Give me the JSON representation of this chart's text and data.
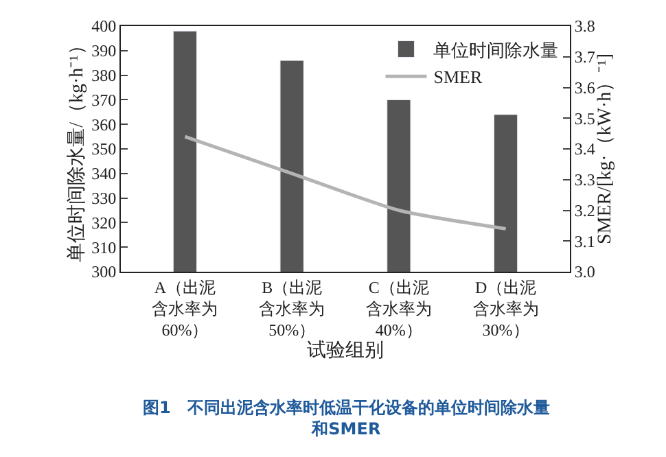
{
  "chart_data": {
    "type": "bar",
    "title": "图1　不同出泥含水率时低温干化设备的单位时间除水量和SMER",
    "xlabel": "试验组别",
    "ylabel": "单位时间除水量/（kg·h⁻¹）",
    "y2label": "SMER/[kg·（kW·h）⁻¹]",
    "categories": [
      "A（出泥含水率为60%）",
      "B（出泥含水率为50%）",
      "C（出泥含水率为40%）",
      "D（出泥含水率为30%）"
    ],
    "series": [
      {
        "name": "单位时间除水量",
        "color": "#555555",
        "values": [
          398,
          386,
          370,
          364
        ]
      },
      {
        "name": "SMER",
        "color": "#b4b4b4",
        "type": "line",
        "axis": "y2",
        "values": [
          3.44,
          3.32,
          3.2,
          3.14
        ]
      }
    ],
    "ylim": [
      300,
      400
    ],
    "yticks": [
      300,
      310,
      320,
      330,
      340,
      350,
      360,
      370,
      380,
      390,
      400
    ],
    "y2lim": [
      3.0,
      3.8
    ],
    "y2ticks": [
      {
        "value": 3.0,
        "label": "3.0"
      },
      3.1,
      3.2,
      3.3,
      3.4,
      3.5,
      3.6,
      3.7,
      3.8
    ],
    "legend": "top right",
    "marker": "none",
    "line_style": "solid"
  }
}
